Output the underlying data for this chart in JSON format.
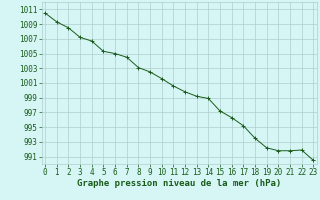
{
  "x": [
    0,
    1,
    2,
    3,
    4,
    5,
    6,
    7,
    8,
    9,
    10,
    11,
    12,
    13,
    14,
    15,
    16,
    17,
    18,
    19,
    20,
    21,
    22,
    23
  ],
  "y": [
    1010.5,
    1009.3,
    1008.5,
    1007.2,
    1006.7,
    1005.3,
    1005.0,
    1004.5,
    1003.1,
    1002.5,
    1001.6,
    1000.6,
    999.8,
    999.2,
    998.9,
    997.2,
    996.3,
    995.2,
    993.5,
    992.2,
    991.8,
    991.8,
    991.9,
    990.5
  ],
  "ylim": [
    990,
    1012
  ],
  "xlim": [
    -0.3,
    23.3
  ],
  "yticks": [
    991,
    993,
    995,
    997,
    999,
    1001,
    1003,
    1005,
    1007,
    1009,
    1011
  ],
  "xticks": [
    0,
    1,
    2,
    3,
    4,
    5,
    6,
    7,
    8,
    9,
    10,
    11,
    12,
    13,
    14,
    15,
    16,
    17,
    18,
    19,
    20,
    21,
    22,
    23
  ],
  "xlabel": "Graphe pression niveau de la mer (hPa)",
  "line_color": "#1a5c1a",
  "marker": "+",
  "marker_size": 3,
  "bg_color": "#d6f5f5",
  "grid_color": "#aecece",
  "tick_color": "#1a5c1a",
  "label_color": "#1a5c1a",
  "tick_fontsize": 5.5,
  "xlabel_fontsize": 6.5
}
